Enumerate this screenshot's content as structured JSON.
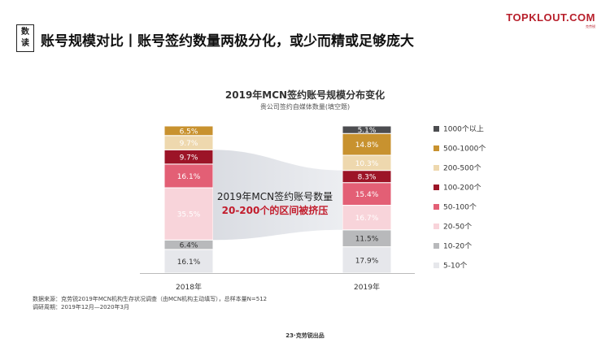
{
  "header": {
    "badge_chars": [
      "数",
      "读"
    ],
    "title": "账号规模对比丨账号签约数量两极分化，或少而精或足够庞大"
  },
  "logo": {
    "name": "TOPKLOUT.COM",
    "tagline": "克劳锐"
  },
  "chart_data": {
    "type": "bar",
    "stacked": true,
    "title": "2019年MCN签约账号规模分布变化",
    "subtitle": "贵公司签约自媒体数量(填空题)",
    "categories": [
      "2018年",
      "2019年"
    ],
    "series": [
      {
        "name": "5-10个",
        "values": [
          16.1,
          17.9
        ],
        "color": "#e6e7eb",
        "label_color": "#333333"
      },
      {
        "name": "10-20个",
        "values": [
          6.4,
          11.5
        ],
        "color": "#b8b9bb",
        "label_color": "#333333"
      },
      {
        "name": "20-50个",
        "values": [
          35.5,
          16.7
        ],
        "color": "#f8d4da",
        "label_color": "#ffffff"
      },
      {
        "name": "50-100个",
        "values": [
          16.1,
          15.4
        ],
        "color": "#e35f75",
        "label_color": "#ffffff"
      },
      {
        "name": "100-200个",
        "values": [
          9.7,
          8.3
        ],
        "color": "#9c1427",
        "label_color": "#ffffff"
      },
      {
        "name": "200-500个",
        "values": [
          9.7,
          10.3
        ],
        "color": "#eed8ae",
        "label_color": "#ffffff"
      },
      {
        "name": "500-1000个",
        "values": [
          6.5,
          14.8
        ],
        "color": "#c8922f",
        "label_color": "#ffffff"
      },
      {
        "name": "1000个以上",
        "values": [
          0,
          5.1
        ],
        "color": "#4c4d50",
        "label_color": "#ffffff"
      }
    ],
    "value_suffix": "%",
    "annotation": {
      "line1": "2019年MCN签约账号数量",
      "line2": "20-200个的区间被挤压",
      "line2_color": "#c21c2c"
    }
  },
  "footer": {
    "source": "数据来源：克劳锐2019年MCN机构生存状况调查（由MCN机构主动填写），总样本量N=512",
    "period": "调研周期：2019年12月—2020年3月",
    "page": "23·克劳锐出品"
  }
}
